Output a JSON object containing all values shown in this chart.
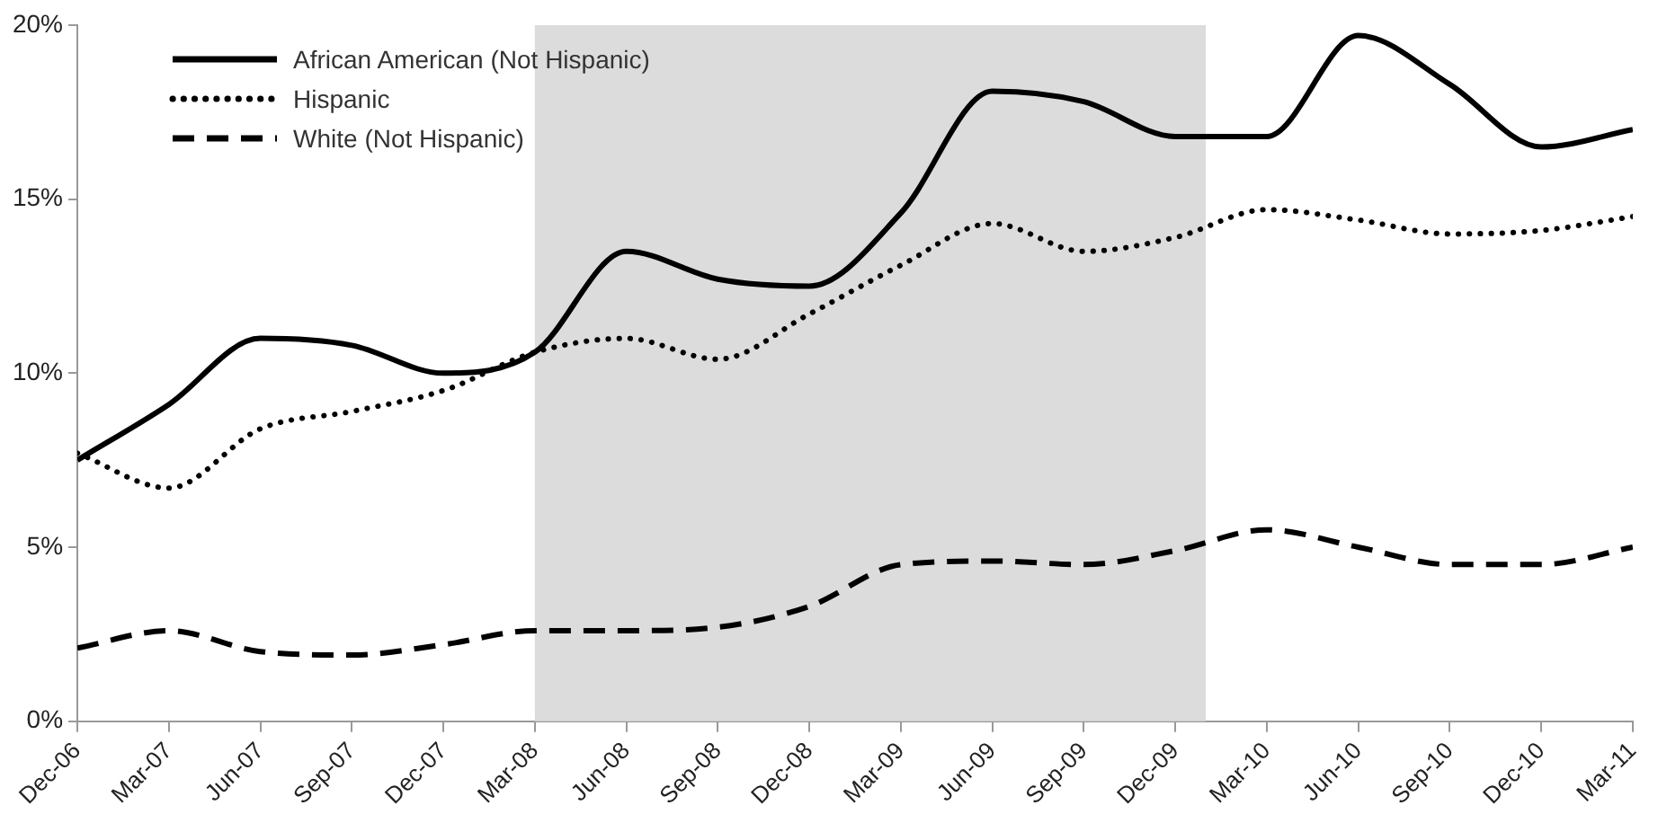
{
  "chart_data": {
    "type": "line",
    "x": [
      "2006-12",
      "2007-03",
      "2007-06",
      "2007-09",
      "2007-12",
      "2008-03",
      "2008-06",
      "2008-09",
      "2008-12",
      "2009-03",
      "2009-06",
      "2009-09",
      "2009-12",
      "2010-03",
      "2010-06",
      "2010-09",
      "2010-12",
      "2011-03"
    ],
    "series": [
      {
        "name": "African American (Not Hispanic)",
        "color": "#000000",
        "line_style": "solid",
        "values": [
          7.5,
          9.1,
          11.0,
          10.8,
          10.0,
          10.6,
          13.5,
          12.7,
          12.5,
          14.6,
          18.1,
          17.8,
          16.8,
          16.8,
          19.7,
          18.3,
          16.5,
          17.0
        ]
      },
      {
        "name": "Hispanic",
        "color": "#000000",
        "line_style": "dotted",
        "values": [
          7.7,
          6.7,
          8.4,
          8.9,
          9.5,
          10.6,
          11.0,
          10.4,
          11.7,
          13.1,
          14.3,
          13.5,
          13.9,
          14.7,
          14.4,
          14.0,
          14.1,
          14.5
        ]
      },
      {
        "name": "White (Not Hispanic)",
        "color": "#000000",
        "line_style": "dashed",
        "values": [
          2.1,
          2.6,
          2.0,
          1.9,
          2.2,
          2.6,
          2.6,
          2.7,
          3.3,
          4.5,
          4.6,
          4.5,
          4.9,
          5.5,
          5.0,
          4.5,
          4.5,
          5.0
        ]
      }
    ],
    "xlim": [
      "2006-12",
      "2011-03"
    ],
    "xticks": [
      {
        "value": "2006-12",
        "label": "Dec-06"
      },
      {
        "value": "2007-03",
        "label": "Mar-07"
      },
      {
        "value": "2007-06",
        "label": "Jun-07"
      },
      {
        "value": "2007-09",
        "label": "Sep-07"
      },
      {
        "value": "2007-12",
        "label": "Dec-07"
      },
      {
        "value": "2008-03",
        "label": "Mar-08"
      },
      {
        "value": "2008-06",
        "label": "Jun-08"
      },
      {
        "value": "2008-09",
        "label": "Sep-08"
      },
      {
        "value": "2008-12",
        "label": "Dec-08"
      },
      {
        "value": "2009-03",
        "label": "Mar-09"
      },
      {
        "value": "2009-06",
        "label": "Jun-09"
      },
      {
        "value": "2009-09",
        "label": "Sep-09"
      },
      {
        "value": "2009-12",
        "label": "Dec-09"
      },
      {
        "value": "2010-03",
        "label": "Mar-10"
      },
      {
        "value": "2010-06",
        "label": "Jun-10"
      },
      {
        "value": "2010-09",
        "label": "Sep-10"
      },
      {
        "value": "2010-12",
        "label": "Dec-10"
      },
      {
        "value": "2011-03",
        "label": "Mar-11"
      }
    ],
    "ylim": [
      0,
      20
    ],
    "yticks": [
      {
        "value": 0,
        "label": "0%"
      },
      {
        "value": 5,
        "label": "5%"
      },
      {
        "value": 10,
        "label": "10%"
      },
      {
        "value": 15,
        "label": "15%"
      },
      {
        "value": 20,
        "label": "20%"
      }
    ],
    "bands": [
      {
        "axis": "x",
        "from": "2008-03",
        "to": "2010-01",
        "color": "#dcdcdc"
      }
    ],
    "grid": false,
    "legend": "top left",
    "marker": "none"
  }
}
